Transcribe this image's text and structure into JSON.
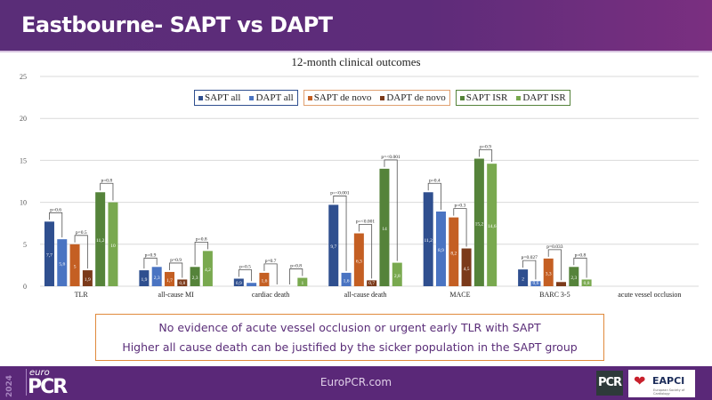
{
  "header": {
    "title": "Eastbourne- SAPT vs DAPT"
  },
  "notes": [
    "No evidence of acute vessel occlusion or urgent early TLR with SAPT",
    "Higher all cause death can be justified by the sicker population in the SAPT group"
  ],
  "footer": {
    "url": "EuroPCR.com",
    "logo_year": "2024",
    "logo_euro": "euro",
    "logo_pcr": "PCR",
    "pcr_badge": "PCR",
    "eapci_label": "EAPCI",
    "eapci_sub": "European Society of Cardiology",
    "eapci_icon": "heart-icon"
  },
  "colors": {
    "header_bg": "#5a2d78",
    "footer_bg": "#5a2878",
    "note_border": "#e08a3c",
    "note_text": "#5a2d78"
  },
  "chart_data": {
    "type": "bar",
    "title": "12-month clinical outcomes",
    "xlabel": "",
    "ylabel": "",
    "ylim": [
      0,
      25
    ],
    "yticks": [
      0,
      5,
      10,
      15,
      20,
      25
    ],
    "grid": true,
    "legend_position": "top-center",
    "categories": [
      "TLR",
      "all-cause MI",
      "cardiac death",
      "all-cause death",
      "MACE",
      "BARC 3-5",
      "acute vessel occlusion"
    ],
    "series": [
      {
        "name": "SAPT all",
        "color": "#2f4f8f",
        "values": [
          7.7,
          1.9,
          0.9,
          9.7,
          11.2,
          2,
          0
        ],
        "labels": [
          "7,7",
          "1,9",
          "0,9",
          "9,7",
          "11,2",
          "2",
          ""
        ]
      },
      {
        "name": "DAPT all",
        "color": "#4a74c2",
        "values": [
          5.6,
          2.3,
          0.4,
          1.6,
          8.9,
          0.6,
          0
        ],
        "labels": [
          "5,6",
          "2,3",
          "",
          "1,6",
          "8,9",
          "0,6",
          ""
        ]
      },
      {
        "name": "SAPT de novo",
        "color": "#c45f23",
        "values": [
          5,
          1.7,
          1.6,
          6.3,
          8.2,
          3.3,
          0
        ],
        "labels": [
          "5",
          "1,7",
          "1,6",
          "6,3",
          "8,2",
          "3,3",
          ""
        ]
      },
      {
        "name": "DAPT de novo",
        "color": "#7b3a1a",
        "values": [
          1.9,
          0.8,
          0,
          0.7,
          4.5,
          0.5,
          0
        ],
        "labels": [
          "1,9",
          "0,8",
          "",
          "0,7",
          "4,5",
          "",
          ""
        ]
      },
      {
        "name": "SAPT ISR",
        "color": "#55833a",
        "values": [
          11.2,
          2.3,
          0,
          14,
          15.2,
          2.3,
          0
        ],
        "labels": [
          "11,2",
          "2,3",
          "",
          "14",
          "15,2",
          "2,3",
          ""
        ]
      },
      {
        "name": "DAPT ISR",
        "color": "#79a94f",
        "values": [
          10,
          4.2,
          1,
          2.8,
          14.6,
          0.8,
          0
        ],
        "labels": [
          "10",
          "4,2",
          "1",
          "2,8",
          "14,6",
          "0,8",
          ""
        ]
      }
    ],
    "legend_groups": [
      {
        "series": [
          0,
          1
        ],
        "border": "#2f4f8f"
      },
      {
        "series": [
          2,
          3
        ],
        "border": "#e0a070"
      },
      {
        "series": [
          4,
          5
        ],
        "border": "#55833a"
      }
    ],
    "annotations": [
      {
        "category": 0,
        "pair": 0,
        "text": "p=0.6"
      },
      {
        "category": 0,
        "pair": 1,
        "text": "p=0.5"
      },
      {
        "category": 0,
        "pair": 2,
        "text": "p=0.8"
      },
      {
        "category": 1,
        "pair": 0,
        "text": "p=0.9"
      },
      {
        "category": 1,
        "pair": 1,
        "text": "p=0.9"
      },
      {
        "category": 1,
        "pair": 2,
        "text": "p=0.8"
      },
      {
        "category": 2,
        "pair": 0,
        "text": "p=0.5"
      },
      {
        "category": 2,
        "pair": 1,
        "text": "p=0.7"
      },
      {
        "category": 2,
        "pair": 2,
        "text": "p=0.8"
      },
      {
        "category": 3,
        "pair": 0,
        "text": "p=<0.001"
      },
      {
        "category": 3,
        "pair": 1,
        "text": "p=<0.001"
      },
      {
        "category": 3,
        "pair": 2,
        "text": "p=<0.001"
      },
      {
        "category": 4,
        "pair": 0,
        "text": "p=0.4"
      },
      {
        "category": 4,
        "pair": 1,
        "text": "p=0.3"
      },
      {
        "category": 4,
        "pair": 2,
        "text": "p=0.9"
      },
      {
        "category": 5,
        "pair": 0,
        "text": "p=0.027"
      },
      {
        "category": 5,
        "pair": 1,
        "text": "p=0.033"
      },
      {
        "category": 5,
        "pair": 2,
        "text": "p=0.8"
      }
    ]
  }
}
